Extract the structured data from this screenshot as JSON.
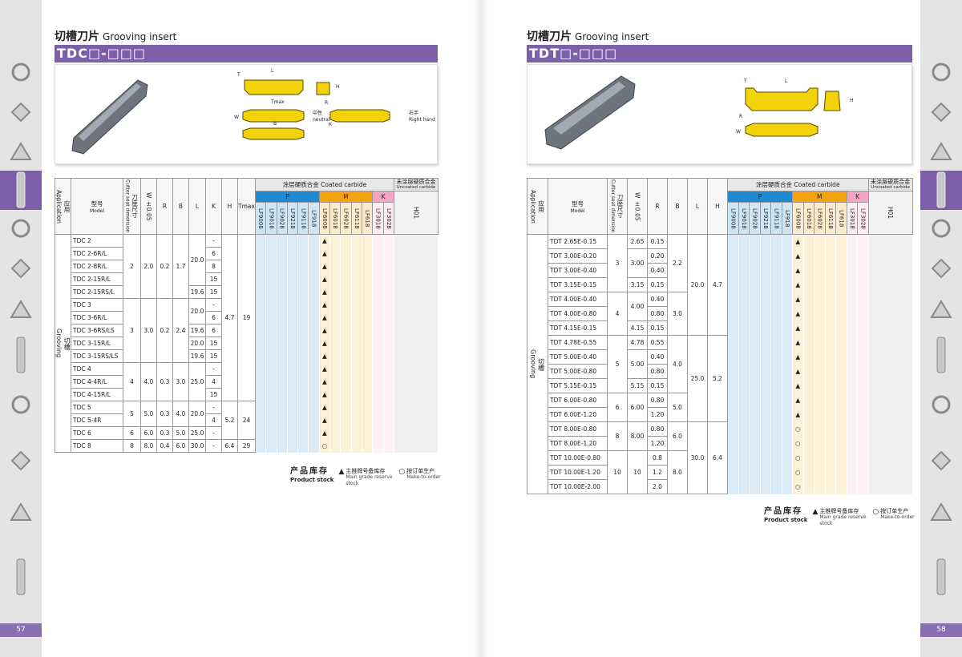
{
  "pages": [
    {
      "title": "切槽刀片",
      "title_en": "Grooving insert",
      "code": "TDC□-□□□",
      "diagram_labels": [
        "T",
        "L",
        "H",
        "Tmax",
        "W",
        "B",
        "R",
        "中性",
        "neutral",
        "K",
        "右手",
        "Right hand"
      ],
      "table": {
        "application": "应用",
        "application_en": "Application",
        "columns": [
          [
            "型号",
            "Model"
          ],
          [
            "刀座尺寸",
            "Cutter seat dimension"
          ],
          [
            "W ±0.05"
          ],
          [
            "R"
          ],
          [
            "B"
          ],
          [
            "L"
          ],
          [
            "K"
          ],
          [
            "H"
          ],
          [
            "Tmax"
          ]
        ],
        "coated": "涂层硬质合金 Coated carbide",
        "uncoated": [
          "未涂层硬质合金",
          "Uncoated carbide"
        ],
        "groups": [
          {
            "name": "P",
            "color": "#1e8ad6",
            "grades": [
              "LF9008",
              "LF9018",
              "LF9028",
              "LF9218",
              "LF9118",
              "LF918"
            ]
          },
          {
            "name": "M",
            "color": "#f2a20c",
            "grades": [
              "LF6008",
              "LF6018",
              "LF6028",
              "LF6118",
              "LF618"
            ]
          },
          {
            "name": "K",
            "color": "#f4a3c4",
            "grades": [
              "LF3018",
              "LF3028"
            ]
          }
        ],
        "uncoated_grades": [
          "H01"
        ],
        "application_value": [
          "切槽",
          "Grooving"
        ],
        "rows": [
          {
            "cells": [
              "TDC 2",
              "2",
              "2.0",
              "0.2",
              "1.7",
              "20.0",
              "–",
              "4.7",
              "19"
            ],
            "stock": "▲"
          },
          {
            "cells": [
              "TDC 2-6R/L",
              null,
              null,
              null,
              null,
              null,
              "6",
              null,
              null
            ],
            "stock": "▲"
          },
          {
            "cells": [
              "TDC 2-8R/L",
              null,
              null,
              null,
              null,
              null,
              "8",
              null,
              null
            ],
            "stock": "▲"
          },
          {
            "cells": [
              "TDC 2-15R/L",
              null,
              null,
              null,
              null,
              null,
              "15",
              null,
              null
            ],
            "stock": "▲"
          },
          {
            "cells": [
              "TDC 2-15RS/L",
              null,
              null,
              null,
              null,
              "19.6",
              "15",
              null,
              null
            ],
            "stock": "▲"
          },
          {
            "cells": [
              "TDC 3",
              "3",
              "3.0",
              "0.2",
              "2.4",
              "20.0",
              "–",
              null,
              null
            ],
            "stock": "▲"
          },
          {
            "cells": [
              "TDC 3-6R/L",
              null,
              null,
              null,
              null,
              null,
              "6",
              null,
              null
            ],
            "stock": "▲"
          },
          {
            "cells": [
              "TDC 3-6RS/LS",
              null,
              null,
              null,
              null,
              "19.6",
              "6",
              null,
              null
            ],
            "stock": "▲"
          },
          {
            "cells": [
              "TDC 3-15R/L",
              null,
              null,
              null,
              null,
              "20.0",
              "15",
              null,
              null
            ],
            "stock": "▲"
          },
          {
            "cells": [
              "TDC 3-15RS/LS",
              null,
              null,
              null,
              null,
              "19.6",
              "15",
              null,
              null
            ],
            "stock": "▲"
          },
          {
            "cells": [
              "TDC 4",
              "4",
              "4.0",
              "0.3",
              "3.0",
              "25.0",
              "–",
              null,
              null
            ],
            "stock": "▲"
          },
          {
            "cells": [
              "TDC 4-4R/L",
              null,
              null,
              null,
              null,
              null,
              "4",
              null,
              null
            ],
            "stock": "▲"
          },
          {
            "cells": [
              "TDC 4-15R/L",
              null,
              null,
              null,
              null,
              null,
              "15",
              null,
              null
            ],
            "stock": "▲"
          },
          {
            "cells": [
              "TDC 5",
              "5",
              "5.0",
              "0.3",
              "4.0",
              "20.0",
              "–",
              "5.2",
              "24"
            ],
            "stock": "▲"
          },
          {
            "cells": [
              "TDC 5-4R",
              null,
              null,
              null,
              null,
              null,
              "4",
              null,
              null
            ],
            "stock": "▲"
          },
          {
            "cells": [
              "TDC 6",
              "6",
              "6.0",
              "0.3",
              "5.0",
              "25.0",
              "–",
              null,
              null
            ],
            "stock": "▲"
          },
          {
            "cells": [
              "TDC 8",
              "8",
              "8.0",
              "0.4",
              "6.0",
              "30.0",
              "–",
              "6.4",
              "29"
            ],
            "stock": "○"
          }
        ]
      },
      "legend": {
        "title": "产品库存",
        "title_en": "Product stock",
        "items": [
          {
            "symbol": "▲",
            "text": "主推牌号备库存",
            "text_en": "Main grade reserve stock"
          },
          {
            "symbol": "○",
            "text": "按订单生产",
            "text_en": "Make-to-order"
          }
        ]
      },
      "page_number": "57"
    },
    {
      "title": "切槽刀片",
      "title_en": "Grooving insert",
      "code": "TDT□-□□□",
      "diagram_labels": [
        "T",
        "L",
        "H",
        "R",
        "W"
      ],
      "table": {
        "application": "应用",
        "application_en": "Application",
        "columns": [
          [
            "型号",
            "Model"
          ],
          [
            "刀座尺寸",
            "Cutter seat dimension"
          ],
          [
            "W ±0.05"
          ],
          [
            "R"
          ],
          [
            "B"
          ],
          [
            "L"
          ],
          [
            "H"
          ]
        ],
        "coated": "涂层硬质合金 Coated carbide",
        "uncoated": [
          "未涂层硬质合金",
          "Uncoated carbide"
        ],
        "groups": [
          {
            "name": "P",
            "color": "#1e8ad6",
            "grades": [
              "LF9008",
              "LF9018",
              "LF9028",
              "LF9218",
              "LF9118",
              "LF918"
            ]
          },
          {
            "name": "M",
            "color": "#f2a20c",
            "grades": [
              "LF6008",
              "LF6018",
              "LF6028",
              "LF6118",
              "LF618"
            ]
          },
          {
            "name": "K",
            "color": "#f4a3c4",
            "grades": [
              "LF3018",
              "LF3028"
            ]
          }
        ],
        "uncoated_grades": [
          "H01"
        ],
        "application_value": [
          "切槽",
          "Grooving"
        ],
        "rows": [
          {
            "cells": [
              "TDT 2.65E-0.15",
              "3",
              "2.65",
              "0.15",
              "2.2",
              "20.0",
              "4.7"
            ],
            "stock": "▲"
          },
          {
            "cells": [
              "TDT 3.00E-0.20",
              null,
              "3.00",
              "0.20",
              null,
              null,
              null
            ],
            "stock": "▲"
          },
          {
            "cells": [
              "TDT 3.00E-0.40",
              null,
              null,
              "0.40",
              null,
              null,
              null
            ],
            "stock": "▲"
          },
          {
            "cells": [
              "TDT 3.15E-0.15",
              null,
              "3.15",
              "0.15",
              null,
              null,
              null
            ],
            "stock": "▲"
          },
          {
            "cells": [
              "TDT 4.00E-0.40",
              "4",
              "4.00",
              "0.40",
              "3.0",
              null,
              null
            ],
            "stock": "▲"
          },
          {
            "cells": [
              "TDT 4.00E-0.80",
              null,
              null,
              "0.80",
              null,
              null,
              null
            ],
            "stock": "▲"
          },
          {
            "cells": [
              "TDT 4.15E-0.15",
              null,
              "4.15",
              "0.15",
              null,
              null,
              null
            ],
            "stock": "▲"
          },
          {
            "cells": [
              "TDT 4.78E-0.55",
              "5",
              "4.78",
              "0.55",
              "4.0",
              "25.0",
              "5.2"
            ],
            "stock": "▲"
          },
          {
            "cells": [
              "TDT 5.00E-0.40",
              null,
              "5.00",
              "0.40",
              null,
              null,
              null
            ],
            "stock": "▲"
          },
          {
            "cells": [
              "TDT 5.00E-0.80",
              null,
              null,
              "0.80",
              null,
              null,
              null
            ],
            "stock": "▲"
          },
          {
            "cells": [
              "TDT 5.15E-0.15",
              null,
              "5.15",
              "0.15",
              null,
              null,
              null
            ],
            "stock": "▲"
          },
          {
            "cells": [
              "TDT 6.00E-0.80",
              "6",
              "6.00",
              "0.80",
              "5.0",
              null,
              null
            ],
            "stock": "▲"
          },
          {
            "cells": [
              "TDT 6.00E-1.20",
              null,
              null,
              "1.20",
              null,
              null,
              null
            ],
            "stock": "▲"
          },
          {
            "cells": [
              "TDT 8.00E-0.80",
              "8",
              "8.00",
              "0.80",
              "6.0",
              "30.0",
              "6.4"
            ],
            "stock": "○"
          },
          {
            "cells": [
              "TDT 8.00E-1.20",
              null,
              null,
              "1.20",
              null,
              null,
              null
            ],
            "stock": "○"
          },
          {
            "cells": [
              "TDT 10.00E-0.80",
              "10",
              "10",
              "0.8",
              "8.0",
              null,
              null
            ],
            "stock": "○"
          },
          {
            "cells": [
              "TDT 10.00E-1.20",
              null,
              null,
              "1.2",
              null,
              null,
              null
            ],
            "stock": "○"
          },
          {
            "cells": [
              "TDT 10.00E-2.00",
              null,
              null,
              "2.0",
              null,
              null,
              null
            ],
            "stock": "○"
          }
        ]
      },
      "legend": {
        "title": "产品库存",
        "title_en": "Product stock",
        "items": [
          {
            "symbol": "▲",
            "text": "主推牌号备库存",
            "text_en": "Main grade reserve stock"
          },
          {
            "symbol": "○",
            "text": "按订单生产",
            "text_en": "Make-to-order"
          }
        ]
      },
      "page_number": "58"
    }
  ]
}
